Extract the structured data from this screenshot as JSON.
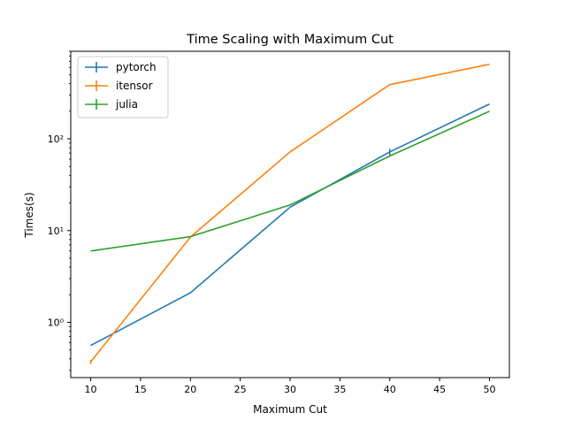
{
  "chart_data": {
    "type": "line",
    "title": "Time Scaling with Maximum Cut",
    "xlabel": "Maximum Cut",
    "ylabel": "Times(s)",
    "x": [
      10,
      20,
      30,
      40,
      50
    ],
    "xlim": [
      8,
      52
    ],
    "ylim": [
      0.25,
      900
    ],
    "yscale": "log",
    "xticks": [
      10,
      15,
      20,
      25,
      30,
      35,
      40,
      45,
      50
    ],
    "yticks": [
      {
        "value": 1,
        "label": "10⁰"
      },
      {
        "value": 10,
        "label": "10¹"
      },
      {
        "value": 100,
        "label": "10²"
      }
    ],
    "grid": false,
    "legend_position": "upper-left",
    "series": [
      {
        "name": "pytorch",
        "color": "#1f77b4",
        "values": [
          0.56,
          2.1,
          18,
          72,
          240
        ],
        "errorbar": [
          0,
          0,
          0,
          6,
          0
        ]
      },
      {
        "name": "itensor",
        "color": "#ff7f0e",
        "values": [
          0.37,
          8.5,
          72,
          390,
          650
        ],
        "errorbar": [
          0.02,
          0,
          0,
          0,
          0
        ]
      },
      {
        "name": "julia",
        "color": "#2ca02c",
        "values": [
          6.0,
          8.6,
          19,
          65,
          200
        ],
        "errorbar": [
          0,
          0,
          0,
          0,
          0
        ]
      }
    ]
  }
}
